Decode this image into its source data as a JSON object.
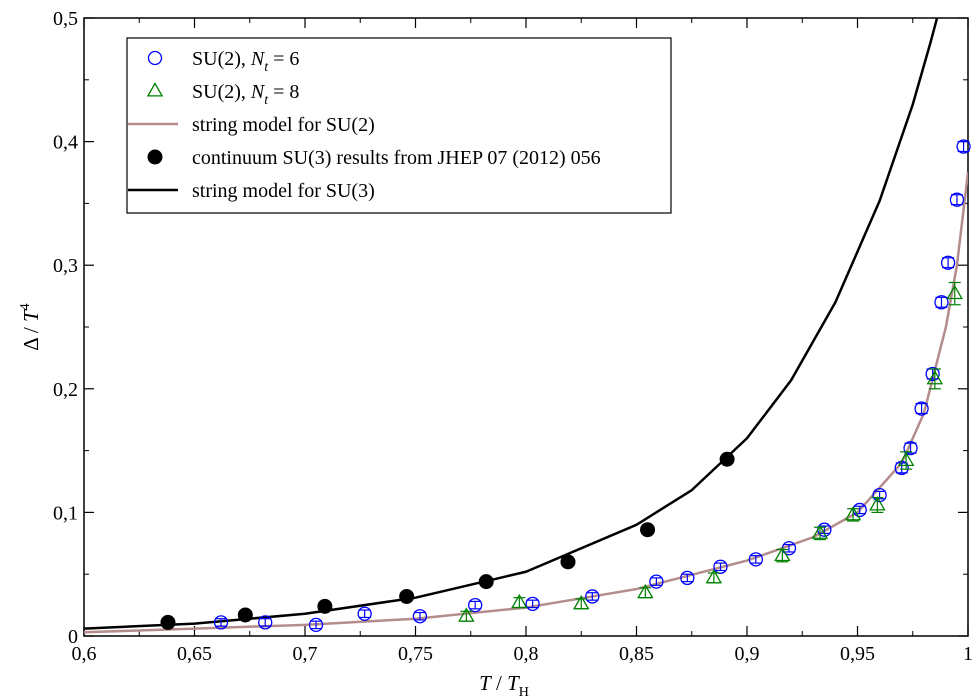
{
  "chart_data": {
    "type": "scatter",
    "title": "",
    "xlabel": "T / T_H",
    "ylabel": "Δ / T^4",
    "xlim": [
      0.6,
      1.0
    ],
    "ylim": [
      0.0,
      0.5
    ],
    "x_ticks": [
      "0,6",
      "0,65",
      "0,7",
      "0,75",
      "0,8",
      "0,85",
      "0,9",
      "0,95",
      "1"
    ],
    "x_tick_values": [
      0.6,
      0.65,
      0.7,
      0.75,
      0.8,
      0.85,
      0.9,
      0.95,
      1.0
    ],
    "y_ticks": [
      "0",
      "0,1",
      "0,2",
      "0,3",
      "0,4",
      "0,5"
    ],
    "y_tick_values": [
      0.0,
      0.1,
      0.2,
      0.3,
      0.4,
      0.5
    ],
    "grid": false,
    "legend_position": "top-left",
    "legend": [
      {
        "label": "SU(2), ",
        "label_math": "N",
        "label_sub": "t",
        "label_tail": " = 6",
        "marker": "circle",
        "color": "#0000ff"
      },
      {
        "label": "SU(2), ",
        "label_math": "N",
        "label_sub": "t",
        "label_tail": " = 8",
        "marker": "triangle",
        "color": "#008000"
      },
      {
        "label": "string model for SU(2)",
        "marker": "line",
        "color": "#b48c8c"
      },
      {
        "label": "continuum SU(3) results from JHEP 07 (2012) 056",
        "marker": "filled-circle",
        "color": "#000000"
      },
      {
        "label": "string model for SU(3)",
        "marker": "line",
        "color": "#000000"
      }
    ],
    "series": [
      {
        "name": "SU(2), N_t = 6",
        "marker": "circle",
        "color": "#0000ff",
        "points": [
          {
            "x": 0.662,
            "y": 0.011,
            "err": 0.003
          },
          {
            "x": 0.682,
            "y": 0.011,
            "err": 0.003
          },
          {
            "x": 0.705,
            "y": 0.009,
            "err": 0.003
          },
          {
            "x": 0.727,
            "y": 0.018,
            "err": 0.003
          },
          {
            "x": 0.752,
            "y": 0.016,
            "err": 0.003
          },
          {
            "x": 0.777,
            "y": 0.025,
            "err": 0.003
          },
          {
            "x": 0.803,
            "y": 0.026,
            "err": 0.003
          },
          {
            "x": 0.83,
            "y": 0.032,
            "err": 0.003
          },
          {
            "x": 0.859,
            "y": 0.044,
            "err": 0.003
          },
          {
            "x": 0.873,
            "y": 0.047,
            "err": 0.003
          },
          {
            "x": 0.888,
            "y": 0.056,
            "err": 0.003
          },
          {
            "x": 0.904,
            "y": 0.062,
            "err": 0.003
          },
          {
            "x": 0.919,
            "y": 0.071,
            "err": 0.003
          },
          {
            "x": 0.935,
            "y": 0.086,
            "err": 0.003
          },
          {
            "x": 0.951,
            "y": 0.102,
            "err": 0.003
          },
          {
            "x": 0.96,
            "y": 0.114,
            "err": 0.003
          },
          {
            "x": 0.97,
            "y": 0.136,
            "err": 0.004
          },
          {
            "x": 0.974,
            "y": 0.152,
            "err": 0.004
          },
          {
            "x": 0.979,
            "y": 0.184,
            "err": 0.004
          },
          {
            "x": 0.984,
            "y": 0.212,
            "err": 0.004
          },
          {
            "x": 0.988,
            "y": 0.27,
            "err": 0.004
          },
          {
            "x": 0.991,
            "y": 0.302,
            "err": 0.004
          },
          {
            "x": 0.995,
            "y": 0.353,
            "err": 0.004
          },
          {
            "x": 0.998,
            "y": 0.396,
            "err": 0.004
          }
        ]
      },
      {
        "name": "SU(2), N_t = 8",
        "marker": "triangle",
        "color": "#008000",
        "points": [
          {
            "x": 0.773,
            "y": 0.016,
            "err": 0.004
          },
          {
            "x": 0.797,
            "y": 0.027,
            "err": 0.004
          },
          {
            "x": 0.825,
            "y": 0.026,
            "err": 0.004
          },
          {
            "x": 0.854,
            "y": 0.035,
            "err": 0.004
          },
          {
            "x": 0.885,
            "y": 0.047,
            "err": 0.004
          },
          {
            "x": 0.916,
            "y": 0.065,
            "err": 0.005
          },
          {
            "x": 0.933,
            "y": 0.083,
            "err": 0.005
          },
          {
            "x": 0.948,
            "y": 0.098,
            "err": 0.005
          },
          {
            "x": 0.959,
            "y": 0.106,
            "err": 0.006
          },
          {
            "x": 0.972,
            "y": 0.142,
            "err": 0.007
          },
          {
            "x": 0.985,
            "y": 0.208,
            "err": 0.008
          },
          {
            "x": 0.994,
            "y": 0.277,
            "err": 0.009
          }
        ]
      },
      {
        "name": "continuum SU(3) results from JHEP 07 (2012) 056",
        "marker": "filled-circle",
        "color": "#000000",
        "points": [
          {
            "x": 0.638,
            "y": 0.011
          },
          {
            "x": 0.673,
            "y": 0.017
          },
          {
            "x": 0.709,
            "y": 0.024
          },
          {
            "x": 0.746,
            "y": 0.032
          },
          {
            "x": 0.782,
            "y": 0.044
          },
          {
            "x": 0.819,
            "y": 0.06
          },
          {
            "x": 0.855,
            "y": 0.086
          },
          {
            "x": 0.891,
            "y": 0.143
          }
        ]
      },
      {
        "name": "string model for SU(2)",
        "type": "line",
        "color": "#b48c8c",
        "points": [
          {
            "x": 0.6,
            "y": 0.003
          },
          {
            "x": 0.65,
            "y": 0.006
          },
          {
            "x": 0.7,
            "y": 0.009
          },
          {
            "x": 0.75,
            "y": 0.014
          },
          {
            "x": 0.8,
            "y": 0.023
          },
          {
            "x": 0.85,
            "y": 0.038
          },
          {
            "x": 0.9,
            "y": 0.061
          },
          {
            "x": 0.93,
            "y": 0.08
          },
          {
            "x": 0.95,
            "y": 0.1
          },
          {
            "x": 0.97,
            "y": 0.14
          },
          {
            "x": 0.98,
            "y": 0.18
          },
          {
            "x": 0.99,
            "y": 0.25
          },
          {
            "x": 0.995,
            "y": 0.3
          },
          {
            "x": 1.0,
            "y": 0.375
          }
        ]
      },
      {
        "name": "string model for SU(3)",
        "type": "line",
        "color": "#000000",
        "points": [
          {
            "x": 0.6,
            "y": 0.006
          },
          {
            "x": 0.65,
            "y": 0.01
          },
          {
            "x": 0.7,
            "y": 0.018
          },
          {
            "x": 0.75,
            "y": 0.031
          },
          {
            "x": 0.8,
            "y": 0.052
          },
          {
            "x": 0.85,
            "y": 0.09
          },
          {
            "x": 0.875,
            "y": 0.118
          },
          {
            "x": 0.9,
            "y": 0.16
          },
          {
            "x": 0.92,
            "y": 0.207
          },
          {
            "x": 0.94,
            "y": 0.27
          },
          {
            "x": 0.96,
            "y": 0.352
          },
          {
            "x": 0.975,
            "y": 0.43
          },
          {
            "x": 0.983,
            "y": 0.48
          },
          {
            "x": 0.986,
            "y": 0.5
          }
        ]
      }
    ]
  }
}
